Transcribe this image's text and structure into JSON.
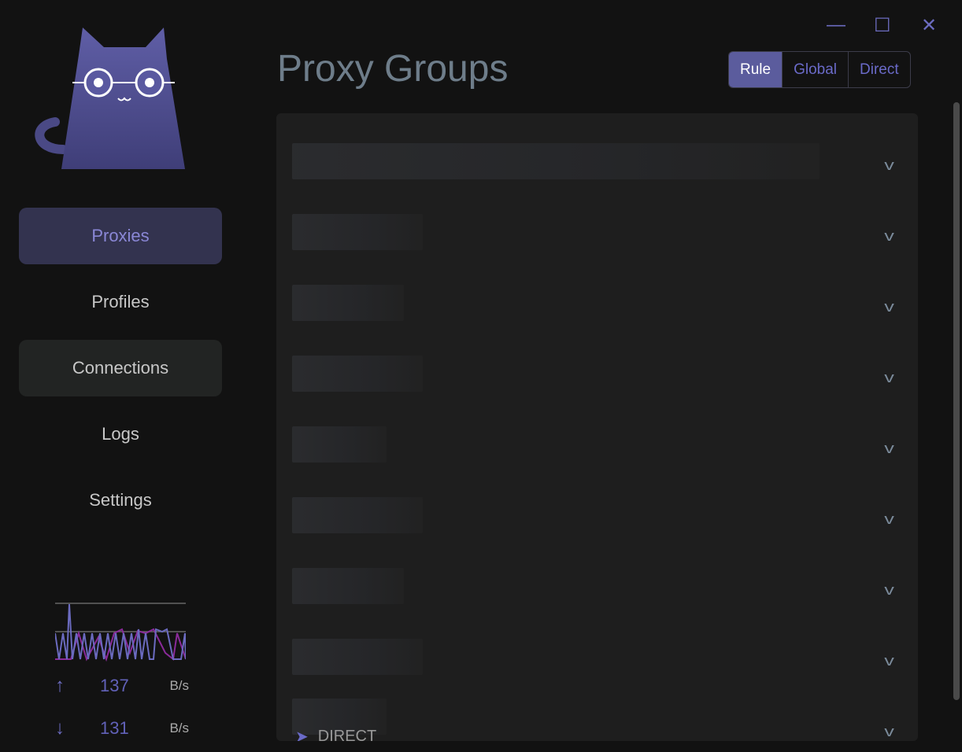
{
  "window": {
    "minimize_icon": "minimize-icon",
    "maximize_icon": "maximize-icon",
    "close_icon": "close-icon"
  },
  "sidebar": {
    "items": [
      {
        "label": "Proxies",
        "active": true
      },
      {
        "label": "Profiles"
      },
      {
        "label": "Connections"
      },
      {
        "label": "Logs"
      },
      {
        "label": "Settings"
      }
    ]
  },
  "traffic": {
    "upload": "137",
    "upload_unit": "B/s",
    "download": "131",
    "download_unit": "B/s"
  },
  "header": {
    "title": "Proxy Groups"
  },
  "modes": [
    {
      "label": "Rule",
      "active": true
    },
    {
      "label": "Global"
    },
    {
      "label": "Direct"
    }
  ],
  "groups": {
    "count_visible": 9,
    "last_selected": "DIRECT"
  },
  "colors": {
    "accent": "#5b5c9d",
    "upload_line": "#6b6bc0",
    "download_line": "#8a2a9a"
  }
}
